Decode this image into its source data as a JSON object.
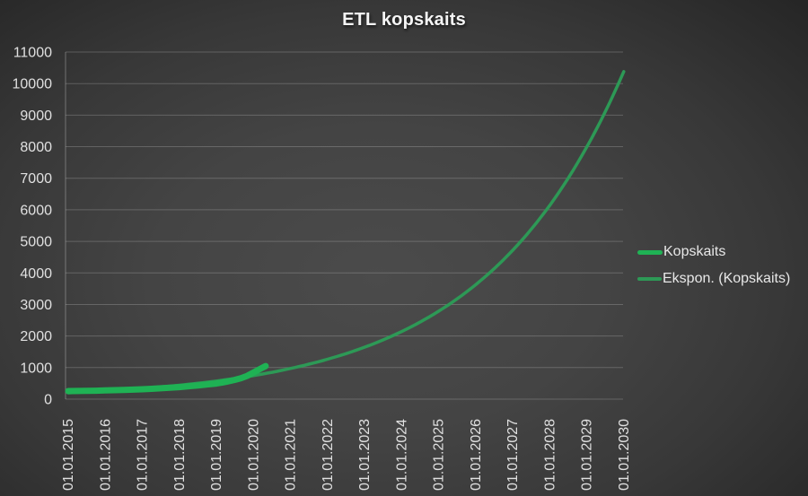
{
  "chart_data": {
    "type": "line",
    "title": "ETL kopskaits",
    "x_tick_labels": [
      "01.01.2015",
      "01.01.2016",
      "01.01.2017",
      "01.01.2018",
      "01.01.2019",
      "01.01.2020",
      "01.01.2021",
      "01.01.2022",
      "01.01.2023",
      "01.01.2024",
      "01.01.2025",
      "01.01.2026",
      "01.01.2027",
      "01.01.2028",
      "01.01.2029",
      "01.01.2030"
    ],
    "y_ticks": [
      0,
      1000,
      2000,
      3000,
      4000,
      5000,
      6000,
      7000,
      8000,
      9000,
      10000,
      11000
    ],
    "ylim": [
      0,
      11000
    ],
    "x_years": [
      2015,
      2030
    ],
    "grid": true,
    "legend_position": "right",
    "series": [
      {
        "name": "Kopskaits",
        "slug": "kopskaits-series-line",
        "color": "#1fb254",
        "stroke_width": 7,
        "interpolation": "linear",
        "points": [
          [
            2015.0,
            255
          ],
          [
            2015.25,
            258
          ],
          [
            2015.5,
            262
          ],
          [
            2015.75,
            268
          ],
          [
            2016.0,
            275
          ],
          [
            2016.25,
            283
          ],
          [
            2016.5,
            292
          ],
          [
            2016.75,
            302
          ],
          [
            2017.0,
            314
          ],
          [
            2017.25,
            328
          ],
          [
            2017.5,
            344
          ],
          [
            2017.75,
            362
          ],
          [
            2018.0,
            382
          ],
          [
            2018.25,
            406
          ],
          [
            2018.5,
            432
          ],
          [
            2018.75,
            462
          ],
          [
            2019.0,
            495
          ],
          [
            2019.17,
            528
          ],
          [
            2019.33,
            565
          ],
          [
            2019.5,
            610
          ],
          [
            2019.67,
            665
          ],
          [
            2019.83,
            735
          ],
          [
            2020.0,
            840
          ],
          [
            2020.17,
            950
          ],
          [
            2020.33,
            1050
          ]
        ]
      },
      {
        "name": "Ekspon. (Kopskaits)",
        "slug": "exponential-trendline",
        "color": "#2d9956",
        "stroke_width": 3.5,
        "interpolation": "exponential",
        "points": [
          [
            2015,
            200
          ],
          [
            2016,
            260
          ],
          [
            2017,
            339
          ],
          [
            2018,
            441
          ],
          [
            2019,
            574
          ],
          [
            2020,
            746
          ],
          [
            2021,
            971
          ],
          [
            2022,
            1264
          ],
          [
            2023,
            1645
          ],
          [
            2024,
            2140
          ],
          [
            2025,
            2785
          ],
          [
            2026,
            3624
          ],
          [
            2027,
            4716
          ],
          [
            2028,
            6137
          ],
          [
            2029,
            7986
          ],
          [
            2030,
            10380
          ]
        ]
      }
    ]
  }
}
